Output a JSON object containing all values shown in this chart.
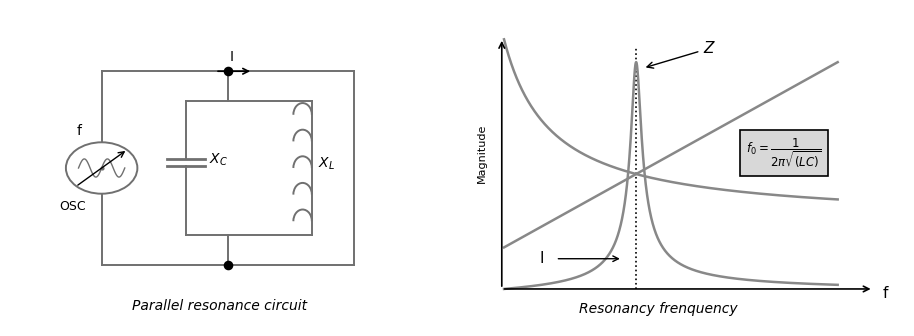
{
  "bg_color": "#ffffff",
  "line_color": "#707070",
  "text_color": "#000000",
  "title_left": "Parallel resonance circuit",
  "title_right": "Resonancy frenquency",
  "label_z": "Z",
  "label_I": "I",
  "label_f_axis": "f",
  "label_magnitude": "Magnitude",
  "label_osc": "OSC",
  "label_f_osc": "f",
  "label_xc": "$X_C$",
  "label_xl": "$X_L$",
  "curve_color": "#888888",
  "formula_bg": "#d8d8d8"
}
